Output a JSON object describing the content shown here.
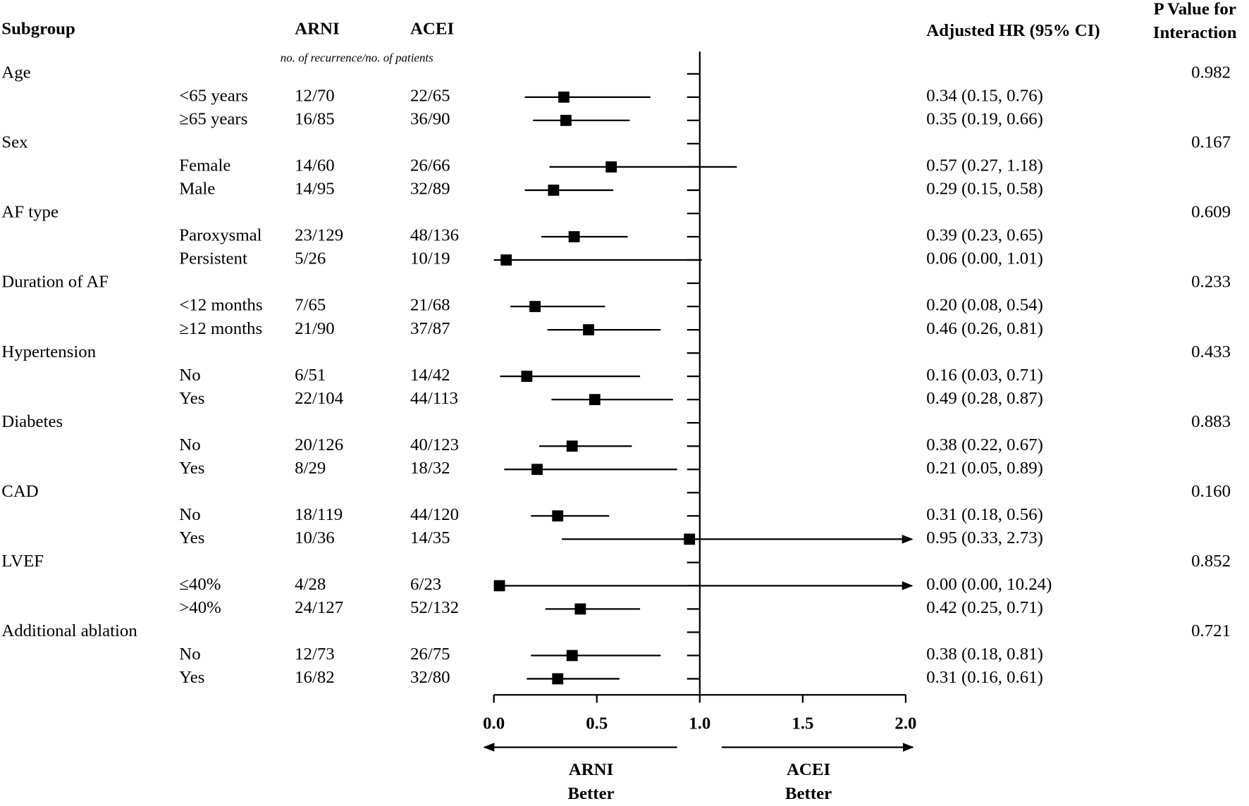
{
  "chart_data": {
    "type": "forest",
    "headers": {
      "subgroup": "Subgroup",
      "arni": "ARNI",
      "acei": "ACEI",
      "counts_note": "no. of recurrence/no. of patients",
      "hr": "Adjusted HR (95% CI)",
      "p": "P Value for Interaction"
    },
    "groups": [
      {
        "name": "Age",
        "p_value": "0.982",
        "rows": [
          {
            "label": "<65 years",
            "arni": "12/70",
            "acei": "22/65",
            "hr": 0.34,
            "lower": 0.15,
            "upper": 0.76,
            "hr_label": "0.34 (0.15, 0.76)"
          },
          {
            "label": "≥65 years",
            "arni": "16/85",
            "acei": "36/90",
            "hr": 0.35,
            "lower": 0.19,
            "upper": 0.66,
            "hr_label": "0.35 (0.19, 0.66)"
          }
        ]
      },
      {
        "name": "Sex",
        "p_value": "0.167",
        "rows": [
          {
            "label": "Female",
            "arni": "14/60",
            "acei": "26/66",
            "hr": 0.57,
            "lower": 0.27,
            "upper": 1.18,
            "hr_label": "0.57 (0.27, 1.18)"
          },
          {
            "label": "Male",
            "arni": "14/95",
            "acei": "32/89",
            "hr": 0.29,
            "lower": 0.15,
            "upper": 0.58,
            "hr_label": "0.29 (0.15, 0.58)"
          }
        ]
      },
      {
        "name": "AF type",
        "p_value": "0.609",
        "rows": [
          {
            "label": "Paroxysmal",
            "arni": "23/129",
            "acei": "48/136",
            "hr": 0.39,
            "lower": 0.23,
            "upper": 0.65,
            "hr_label": "0.39 (0.23, 0.65)"
          },
          {
            "label": "Persistent",
            "arni": "5/26",
            "acei": "10/19",
            "hr": 0.06,
            "lower": 0.0,
            "upper": 1.01,
            "hr_label": "0.06 (0.00, 1.01)"
          }
        ]
      },
      {
        "name": "Duration of AF",
        "p_value": "0.233",
        "rows": [
          {
            "label": "<12 months",
            "arni": "7/65",
            "acei": "21/68",
            "hr": 0.2,
            "lower": 0.08,
            "upper": 0.54,
            "hr_label": "0.20 (0.08, 0.54)"
          },
          {
            "label": "≥12 months",
            "arni": "21/90",
            "acei": "37/87",
            "hr": 0.46,
            "lower": 0.26,
            "upper": 0.81,
            "hr_label": "0.46 (0.26, 0.81)"
          }
        ]
      },
      {
        "name": "Hypertension",
        "p_value": "0.433",
        "rows": [
          {
            "label": "No",
            "arni": "6/51",
            "acei": "14/42",
            "hr": 0.16,
            "lower": 0.03,
            "upper": 0.71,
            "hr_label": "0.16 (0.03, 0.71)"
          },
          {
            "label": "Yes",
            "arni": "22/104",
            "acei": "44/113",
            "hr": 0.49,
            "lower": 0.28,
            "upper": 0.87,
            "hr_label": "0.49 (0.28, 0.87)"
          }
        ]
      },
      {
        "name": "Diabetes",
        "p_value": "0.883",
        "rows": [
          {
            "label": "No",
            "arni": "20/126",
            "acei": "40/123",
            "hr": 0.38,
            "lower": 0.22,
            "upper": 0.67,
            "hr_label": "0.38 (0.22, 0.67)"
          },
          {
            "label": "Yes",
            "arni": "8/29",
            "acei": "18/32",
            "hr": 0.21,
            "lower": 0.05,
            "upper": 0.89,
            "hr_label": "0.21 (0.05, 0.89)"
          }
        ]
      },
      {
        "name": "CAD",
        "p_value": "0.160",
        "rows": [
          {
            "label": "No",
            "arni": "18/119",
            "acei": "44/120",
            "hr": 0.31,
            "lower": 0.18,
            "upper": 0.56,
            "hr_label": "0.31 (0.18, 0.56)"
          },
          {
            "label": "Yes",
            "arni": "10/36",
            "acei": "14/35",
            "hr": 0.95,
            "lower": 0.33,
            "upper": 2.73,
            "hr_label": "0.95 (0.33, 2.73)"
          }
        ]
      },
      {
        "name": "LVEF",
        "p_value": "0.852",
        "rows": [
          {
            "label": "≤40%",
            "arni": "4/28",
            "acei": "6/23",
            "hr": 0.0,
            "lower": 0.0,
            "upper": 10.24,
            "hr_label": "0.00 (0.00, 10.24)"
          },
          {
            "label": ">40%",
            "arni": "24/127",
            "acei": "52/132",
            "hr": 0.42,
            "lower": 0.25,
            "upper": 0.71,
            "hr_label": "0.42 (0.25, 0.71)"
          }
        ]
      },
      {
        "name": "Additional ablation",
        "p_value": "0.721",
        "rows": [
          {
            "label": "No",
            "arni": "12/73",
            "acei": "26/75",
            "hr": 0.38,
            "lower": 0.18,
            "upper": 0.81,
            "hr_label": "0.38 (0.18, 0.81)"
          },
          {
            "label": "Yes",
            "arni": "16/82",
            "acei": "32/80",
            "hr": 0.31,
            "lower": 0.16,
            "upper": 0.61,
            "hr_label": "0.31 (0.16, 0.61)"
          }
        ]
      }
    ],
    "xlim": [
      0,
      2
    ],
    "xticks": [
      {
        "value": 0,
        "label": "0.0"
      },
      {
        "value": 0.5,
        "label": "0.5"
      },
      {
        "value": 1,
        "label": "1.0"
      },
      {
        "value": 1.5,
        "label": "1.5"
      },
      {
        "value": 2,
        "label": "2.0"
      }
    ],
    "reference_line": 1,
    "favors": [
      "ARNI Better",
      "ACEI Better"
    ],
    "color": "#000000"
  }
}
